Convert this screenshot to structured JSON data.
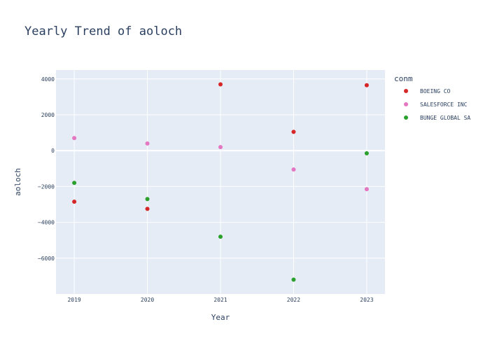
{
  "chart_data": {
    "type": "scatter",
    "title": "Yearly Trend of aoloch",
    "xlabel": "Year",
    "ylabel": "aoloch",
    "x_ticks": [
      "2019",
      "2020",
      "2021",
      "2022",
      "2023"
    ],
    "xlim": [
      2018.75,
      2023.25
    ],
    "y_ticks": [
      4000,
      2000,
      0,
      -2000,
      -4000,
      -6000
    ],
    "y_tick_labels": [
      "4000",
      "2000",
      "0",
      "−2000",
      "−4000",
      "−6000"
    ],
    "ylim": [
      -8000,
      4500
    ],
    "grid": true,
    "legend": {
      "title": "conm",
      "placement": "right"
    },
    "colors": {
      "plot_bg": "#e5ecf6",
      "grid": "#ffffff",
      "text": "#2a3f5f"
    },
    "series": [
      {
        "name": "BOEING CO",
        "color": "#d62728",
        "points": [
          [
            2019,
            -2850
          ],
          [
            2020,
            -3250
          ],
          [
            2021,
            3700
          ],
          [
            2022,
            1050
          ],
          [
            2023,
            3650
          ]
        ]
      },
      {
        "name": "SALESFORCE INC",
        "color": "#e377c2",
        "points": [
          [
            2019,
            700
          ],
          [
            2020,
            400
          ],
          [
            2021,
            200
          ],
          [
            2022,
            -1050
          ],
          [
            2023,
            -2150
          ]
        ]
      },
      {
        "name": "BUNGE GLOBAL SA",
        "color": "#2ca02c",
        "points": [
          [
            2019,
            -1800
          ],
          [
            2020,
            -2700
          ],
          [
            2021,
            -4800
          ],
          [
            2022,
            -7200
          ],
          [
            2023,
            -150
          ]
        ]
      }
    ]
  }
}
